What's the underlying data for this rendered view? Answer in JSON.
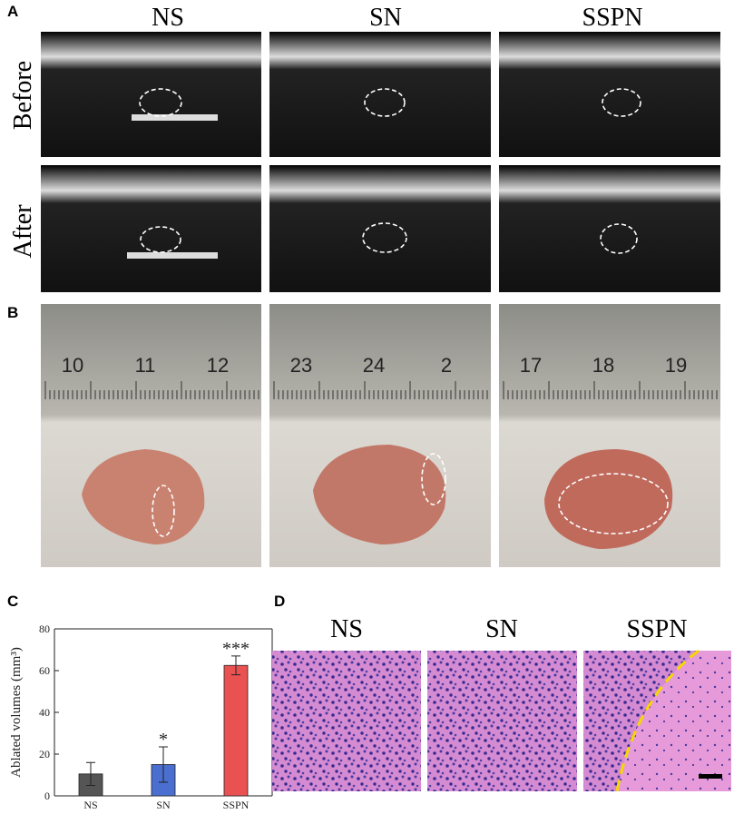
{
  "panel_labels": [
    "A",
    "B",
    "C",
    "D"
  ],
  "panel_a": {
    "columns": [
      "NS",
      "SN",
      "SSPN"
    ],
    "rows": [
      "Before",
      "After"
    ]
  },
  "panel_b": {
    "ruler_labels": [
      [
        "10",
        "11",
        "12"
      ],
      [
        "23",
        "24",
        "2"
      ],
      [
        "17",
        "18",
        "19"
      ]
    ]
  },
  "panel_d": {
    "columns": [
      "NS",
      "SN",
      "SSPN"
    ]
  },
  "chart_data": {
    "type": "bar",
    "y_label": "Ablated volumes (mm³)",
    "categories": [
      "NS",
      "SN",
      "SSPN"
    ],
    "values": [
      10.5,
      15,
      62.5
    ],
    "errors": [
      5.5,
      8.5,
      4.5
    ],
    "colors": [
      "#555555",
      "#4a6fd0",
      "#ea5252"
    ],
    "annotations": [
      {
        "category": "SN",
        "text": "*"
      },
      {
        "category": "SSPN",
        "text": "***"
      }
    ],
    "ylim": [
      0,
      80
    ],
    "yticks": [
      0,
      20,
      40,
      60,
      80
    ]
  }
}
